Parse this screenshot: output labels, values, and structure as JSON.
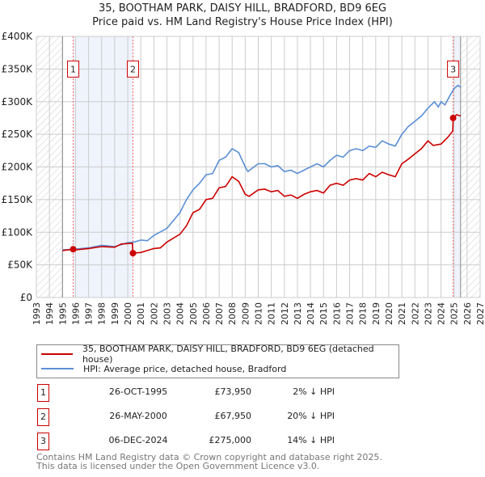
{
  "title": "35, BOOTHAM PARK, DAISY HILL, BRADFORD, BD9 6EG",
  "subtitle": "Price paid vs. HM Land Registry's House Price Index (HPI)",
  "chart_data": {
    "type": "line",
    "title": "35, BOOTHAM PARK, DAISY HILL, BRADFORD, BD9 6EG",
    "subtitle": "Price paid vs. HM Land Registry's House Price Index (HPI)",
    "xlim": [
      1993,
      2027
    ],
    "ylim": [
      0,
      400000
    ],
    "x_ticks": [
      "1993",
      "1994",
      "1995",
      "1996",
      "1997",
      "1998",
      "1999",
      "2000",
      "2001",
      "2002",
      "2003",
      "2004",
      "2005",
      "2006",
      "2007",
      "2008",
      "2009",
      "2010",
      "2011",
      "2012",
      "2013",
      "2014",
      "2015",
      "2016",
      "2017",
      "2018",
      "2019",
      "2020",
      "2021",
      "2022",
      "2023",
      "2024",
      "2025",
      "2026",
      "2027"
    ],
    "y_ticks": [
      {
        "v": 0,
        "label": "£0"
      },
      {
        "v": 50000,
        "label": "£50K"
      },
      {
        "v": 100000,
        "label": "£100K"
      },
      {
        "v": 150000,
        "label": "£150K"
      },
      {
        "v": 200000,
        "label": "£200K"
      },
      {
        "v": 250000,
        "label": "£250K"
      },
      {
        "v": 300000,
        "label": "£300K"
      },
      {
        "v": 350000,
        "label": "£350K"
      },
      {
        "v": 400000,
        "label": "£400K"
      }
    ],
    "grid": true,
    "colors": {
      "property": "#cc0000",
      "hpi": "#5b8fd6",
      "band": "#eef3fc",
      "sale": "#ff6666"
    },
    "series": [
      {
        "name": "35, BOOTHAM PARK, DAISY HILL, BRADFORD, BD9 6EG (detached house)",
        "key": "property",
        "x": [
          1995,
          1995.8,
          1996,
          1997,
          1998,
          1999,
          1999.5,
          2000.35,
          2000.4,
          2001,
          2002,
          2002.5,
          2003,
          2004,
          2004.5,
          2005,
          2005.5,
          2006,
          2006.5,
          2007,
          2007.5,
          2008,
          2008.5,
          2009,
          2009.3,
          2010,
          2010.5,
          2011,
          2011.5,
          2012,
          2012.5,
          2013,
          2013.5,
          2014,
          2014.5,
          2015,
          2015.5,
          2016,
          2016.5,
          2017,
          2017.5,
          2018,
          2018.5,
          2019,
          2019.5,
          2020,
          2020.5,
          2021,
          2021.5,
          2022,
          2022.5,
          2023,
          2023.4,
          2024,
          2024.5,
          2024.9,
          2024.93,
          2025.2,
          2025.5
        ],
        "y": [
          72000,
          73950,
          73000,
          75000,
          78000,
          77000,
          82000,
          83000,
          67950,
          69000,
          75000,
          76000,
          85000,
          97000,
          110000,
          130000,
          135000,
          150000,
          152000,
          168000,
          170000,
          185000,
          178000,
          158000,
          155000,
          165000,
          166000,
          162000,
          164000,
          155000,
          157000,
          152000,
          158000,
          162000,
          164000,
          160000,
          172000,
          175000,
          172000,
          180000,
          182000,
          180000,
          190000,
          185000,
          192000,
          188000,
          185000,
          205000,
          212000,
          220000,
          228000,
          240000,
          233000,
          235000,
          245000,
          255000,
          275000,
          280000,
          278000
        ]
      },
      {
        "name": "HPI: Average price, detached house, Bradford",
        "key": "hpi",
        "x": [
          1995,
          1996,
          1997,
          1998,
          1999,
          2000,
          2000.5,
          2001,
          2001.5,
          2002,
          2003,
          2004,
          2004.5,
          2005,
          2005.5,
          2006,
          2006.5,
          2007,
          2007.5,
          2008,
          2008.5,
          2009,
          2009.2,
          2010,
          2010.5,
          2011,
          2011.5,
          2012,
          2012.5,
          2013,
          2013.5,
          2014,
          2014.5,
          2015,
          2015.5,
          2016,
          2016.5,
          2017,
          2017.5,
          2018,
          2018.5,
          2019,
          2019.5,
          2020,
          2020.5,
          2021,
          2021.5,
          2022,
          2022.5,
          2023,
          2023.5,
          2023.8,
          2024,
          2024.3,
          2024.7,
          2025,
          2025.3,
          2025.5
        ],
        "y": [
          73000,
          74000,
          76000,
          80000,
          78000,
          84000,
          85000,
          88000,
          87000,
          95000,
          106000,
          130000,
          150000,
          165000,
          175000,
          188000,
          190000,
          210000,
          215000,
          228000,
          222000,
          200000,
          193000,
          205000,
          205000,
          200000,
          202000,
          193000,
          195000,
          190000,
          195000,
          200000,
          205000,
          200000,
          210000,
          218000,
          215000,
          225000,
          228000,
          225000,
          232000,
          230000,
          240000,
          235000,
          232000,
          250000,
          262000,
          270000,
          278000,
          290000,
          300000,
          292000,
          300000,
          295000,
          310000,
          320000,
          325000,
          322000
        ]
      }
    ],
    "sales": [
      {
        "id": "1",
        "x": 1995.82,
        "y": 73950
      },
      {
        "id": "2",
        "x": 2000.4,
        "y": 67950
      },
      {
        "id": "3",
        "x": 2024.93,
        "y": 275000
      }
    ],
    "data_range": [
      1995,
      2025.5
    ],
    "legend_placement": "below"
  },
  "legend": {
    "property": "35, BOOTHAM PARK, DAISY HILL, BRADFORD, BD9 6EG (detached house)",
    "hpi": "HPI: Average price, detached house, Bradford"
  },
  "transactions": [
    {
      "id": "1",
      "date": "26-OCT-1995",
      "price": "£73,950",
      "hpi": "2% ↓ HPI"
    },
    {
      "id": "2",
      "date": "26-MAY-2000",
      "price": "£67,950",
      "hpi": "20% ↓ HPI"
    },
    {
      "id": "3",
      "date": "06-DEC-2024",
      "price": "£275,000",
      "hpi": "14% ↓ HPI"
    }
  ],
  "footer": [
    "Contains HM Land Registry data © Crown copyright and database right 2025.",
    "This data is licensed under the Open Government Licence v3.0."
  ]
}
